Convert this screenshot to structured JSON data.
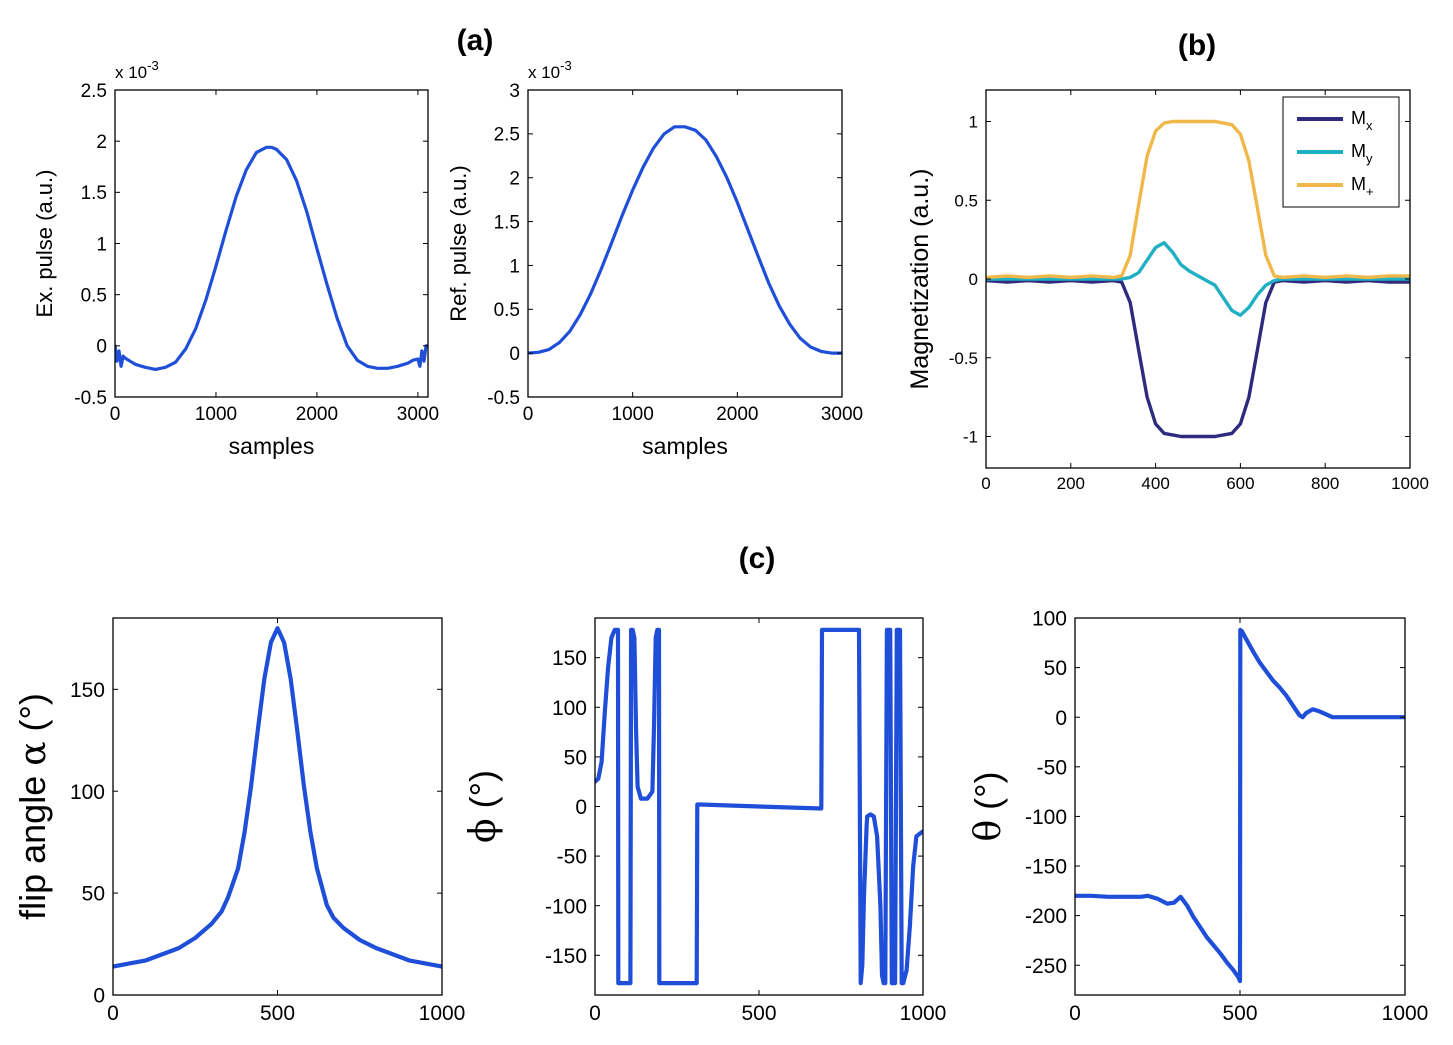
{
  "panel_labels": {
    "a": "(a)",
    "b": "(b)",
    "c": "(c)"
  },
  "colors": {
    "blue": "#1f4fd8",
    "mx": "#2e2a7e",
    "my": "#1fb0c4",
    "mplus": "#f0b84a"
  },
  "chart_data": [
    {
      "id": "ex_pulse",
      "type": "line",
      "ylabel": "Ex. pulse (a.u.)",
      "xlabel": "samples",
      "multiplier": "x 10",
      "multiplier_exp": "-3",
      "xlim": [
        0,
        3100
      ],
      "ylim": [
        -0.5,
        2.5
      ],
      "xticks": [
        0,
        1000,
        2000,
        3000
      ],
      "yticks": [
        -0.5,
        0,
        0.5,
        1,
        1.5,
        2,
        2.5
      ],
      "yticklabels": [
        "-0.5",
        "0",
        "0.5",
        "1",
        "1.5",
        "2",
        "2.5"
      ],
      "series": [
        {
          "name": "Ex. pulse",
          "color": "#1f4fd8",
          "x": [
            0,
            20,
            40,
            60,
            80,
            100,
            150,
            200,
            300,
            400,
            500,
            600,
            700,
            800,
            900,
            1000,
            1100,
            1200,
            1300,
            1400,
            1500,
            1550,
            1600,
            1700,
            1800,
            1900,
            2000,
            2100,
            2200,
            2300,
            2400,
            2500,
            2600,
            2700,
            2800,
            2900,
            2950,
            3000,
            3020,
            3040,
            3060,
            3080,
            3100
          ],
          "y": [
            0,
            -0.15,
            -0.05,
            -0.2,
            -0.1,
            -0.12,
            -0.15,
            -0.18,
            -0.21,
            -0.23,
            -0.21,
            -0.16,
            -0.03,
            0.17,
            0.45,
            0.78,
            1.13,
            1.46,
            1.72,
            1.89,
            1.94,
            1.94,
            1.92,
            1.82,
            1.61,
            1.31,
            0.95,
            0.6,
            0.27,
            0.0,
            -0.14,
            -0.2,
            -0.22,
            -0.22,
            -0.2,
            -0.17,
            -0.14,
            -0.13,
            -0.2,
            -0.05,
            -0.15,
            0,
            0
          ]
        }
      ]
    },
    {
      "id": "ref_pulse",
      "type": "line",
      "ylabel": "Ref. pulse (a.u.)",
      "xlabel": "samples",
      "multiplier": "x 10",
      "multiplier_exp": "-3",
      "xlim": [
        0,
        3000
      ],
      "ylim": [
        -0.5,
        3
      ],
      "xticks": [
        0,
        1000,
        2000,
        3000
      ],
      "yticks": [
        -0.5,
        0,
        0.5,
        1,
        1.5,
        2,
        2.5,
        3
      ],
      "yticklabels": [
        "-0.5",
        "0",
        "0.5",
        "1",
        "1.5",
        "2",
        "2.5",
        "3"
      ],
      "series": [
        {
          "name": "Ref. pulse",
          "color": "#1f4fd8",
          "x": [
            0,
            100,
            200,
            300,
            400,
            500,
            600,
            700,
            800,
            900,
            1000,
            1100,
            1200,
            1300,
            1400,
            1500,
            1600,
            1700,
            1800,
            1900,
            2000,
            2100,
            2200,
            2300,
            2400,
            2500,
            2600,
            2700,
            2800,
            2900,
            3000
          ],
          "y": [
            0.0,
            0.01,
            0.04,
            0.12,
            0.25,
            0.44,
            0.68,
            0.96,
            1.26,
            1.57,
            1.86,
            2.12,
            2.34,
            2.5,
            2.58,
            2.58,
            2.54,
            2.43,
            2.24,
            2.0,
            1.72,
            1.41,
            1.1,
            0.8,
            0.54,
            0.33,
            0.17,
            0.07,
            0.02,
            0.0,
            0.0
          ]
        }
      ]
    },
    {
      "id": "magnetization",
      "type": "line",
      "ylabel": "Magnetization (a.u.)",
      "xlabel": "",
      "xlim": [
        0,
        1000
      ],
      "ylim": [
        -1.2,
        1.2
      ],
      "xticks": [
        0,
        200,
        400,
        600,
        800,
        1000
      ],
      "yticks": [
        -1,
        -0.5,
        0,
        0.5,
        1
      ],
      "yticklabels": [
        "-1",
        "-0.5",
        "0",
        "0.5",
        "1"
      ],
      "legend_position": "top-right",
      "series": [
        {
          "name": "M",
          "sub": "x",
          "color": "#2e2a7e",
          "x": [
            0,
            50,
            100,
            150,
            200,
            250,
            300,
            320,
            340,
            360,
            380,
            400,
            420,
            440,
            460,
            480,
            500,
            520,
            540,
            560,
            580,
            600,
            620,
            640,
            660,
            680,
            700,
            750,
            800,
            850,
            900,
            950,
            1000
          ],
          "y": [
            -0.01,
            -0.02,
            -0.01,
            -0.02,
            -0.01,
            -0.02,
            -0.01,
            -0.02,
            -0.15,
            -0.45,
            -0.75,
            -0.92,
            -0.98,
            -0.99,
            -1.0,
            -1.0,
            -1.0,
            -1.0,
            -1.0,
            -0.99,
            -0.98,
            -0.92,
            -0.75,
            -0.45,
            -0.15,
            -0.02,
            -0.01,
            -0.02,
            -0.01,
            -0.02,
            -0.01,
            -0.02,
            -0.02
          ]
        },
        {
          "name": "M",
          "sub": "y",
          "color": "#1fb0c4",
          "x": [
            0,
            100,
            200,
            300,
            320,
            340,
            360,
            380,
            400,
            420,
            440,
            460,
            480,
            500,
            520,
            540,
            560,
            580,
            600,
            620,
            640,
            660,
            680,
            700,
            800,
            900,
            1000
          ],
          "y": [
            0.0,
            0.0,
            0.0,
            0.0,
            0.0,
            0.01,
            0.04,
            0.12,
            0.2,
            0.23,
            0.17,
            0.09,
            0.05,
            0.02,
            -0.01,
            -0.04,
            -0.12,
            -0.2,
            -0.23,
            -0.18,
            -0.1,
            -0.04,
            -0.01,
            0.0,
            0.0,
            0.0,
            0.0
          ]
        },
        {
          "name": "M",
          "sub": "+",
          "color": "#f0b84a",
          "x": [
            0,
            50,
            100,
            150,
            200,
            250,
            300,
            320,
            340,
            360,
            380,
            400,
            420,
            440,
            460,
            480,
            500,
            520,
            540,
            560,
            580,
            600,
            620,
            640,
            660,
            680,
            700,
            750,
            800,
            850,
            900,
            950,
            1000
          ],
          "y": [
            0.01,
            0.02,
            0.01,
            0.02,
            0.01,
            0.02,
            0.01,
            0.02,
            0.15,
            0.47,
            0.78,
            0.94,
            0.99,
            1.0,
            1.0,
            1.0,
            1.0,
            1.0,
            1.0,
            0.99,
            0.98,
            0.92,
            0.75,
            0.45,
            0.15,
            0.02,
            0.01,
            0.02,
            0.01,
            0.02,
            0.01,
            0.02,
            0.02
          ]
        }
      ]
    },
    {
      "id": "flip_angle",
      "type": "line",
      "ylabel_text": "flip angle ",
      "ylabel_symbol": "α",
      "ylabel_unit": " (°)",
      "xlim": [
        0,
        1000
      ],
      "ylim": [
        0,
        185
      ],
      "xticks": [
        0,
        500,
        1000
      ],
      "yticks": [
        0,
        50,
        100,
        150
      ],
      "yticklabels": [
        "0",
        "50",
        "100",
        "150"
      ],
      "series": [
        {
          "name": "flip angle",
          "color": "#1f4fd8",
          "x": [
            0,
            100,
            200,
            250,
            300,
            330,
            350,
            380,
            400,
            420,
            440,
            460,
            480,
            500,
            520,
            540,
            560,
            580,
            600,
            620,
            650,
            670,
            700,
            750,
            800,
            900,
            1000
          ],
          "y": [
            14,
            17,
            23,
            28,
            35,
            41,
            48,
            62,
            80,
            103,
            130,
            155,
            173,
            180,
            173,
            155,
            130,
            103,
            80,
            62,
            44,
            38,
            33,
            27,
            23,
            17,
            14
          ]
        }
      ]
    },
    {
      "id": "phi",
      "type": "line",
      "ylabel_symbol": "ϕ",
      "ylabel_unit": " (°)",
      "xlim": [
        0,
        1000
      ],
      "ylim": [
        -190,
        190
      ],
      "xticks": [
        0,
        500,
        1000
      ],
      "yticks": [
        -150,
        -100,
        -50,
        0,
        50,
        100,
        150
      ],
      "yticklabels": [
        "-150",
        "-100",
        "-50",
        "0",
        "50",
        "100",
        "150"
      ],
      "series": [
        {
          "name": "phi",
          "color": "#1f4fd8",
          "x": [
            0,
            10,
            20,
            30,
            40,
            50,
            60,
            70,
            71,
            90,
            108,
            110,
            115,
            120,
            125,
            130,
            140,
            160,
            175,
            180,
            185,
            190,
            195,
            196,
            200,
            220,
            250,
            280,
            310,
            312,
            320,
            500,
            690,
            692,
            700,
            800,
            805,
            810,
            815,
            820,
            828,
            830,
            840,
            850,
            860,
            870,
            875,
            880,
            885,
            890,
            900,
            905,
            915,
            920,
            930,
            935,
            940,
            950,
            960,
            970,
            980,
            1000
          ],
          "y": [
            25,
            28,
            45,
            95,
            140,
            170,
            178,
            178,
            -178,
            -178,
            -178,
            178,
            178,
            170,
            80,
            20,
            8,
            8,
            15,
            80,
            170,
            178,
            178,
            -178,
            -178,
            -178,
            -178,
            -178,
            -178,
            2,
            2,
            0,
            -2,
            178,
            178,
            178,
            178,
            -178,
            -160,
            -90,
            -20,
            -10,
            -8,
            -10,
            -30,
            -100,
            -170,
            -178,
            -178,
            178,
            178,
            -178,
            -178,
            178,
            178,
            -178,
            -178,
            -165,
            -120,
            -60,
            -30,
            -25
          ]
        }
      ]
    },
    {
      "id": "theta",
      "type": "line",
      "ylabel_symbol": "θ",
      "ylabel_unit": " (°)",
      "xlim": [
        0,
        1000
      ],
      "ylim": [
        -280,
        100
      ],
      "xticks": [
        0,
        500,
        1000
      ],
      "yticks": [
        -250,
        -200,
        -150,
        -100,
        -50,
        0,
        50,
        100
      ],
      "yticklabels": [
        "-250",
        "-200",
        "-150",
        "-100",
        "-50",
        "0",
        "50",
        "100"
      ],
      "series": [
        {
          "name": "theta",
          "color": "#1f4fd8",
          "x": [
            0,
            50,
            100,
            150,
            200,
            220,
            250,
            280,
            300,
            320,
            340,
            360,
            380,
            400,
            420,
            440,
            460,
            480,
            495,
            500,
            501,
            505,
            520,
            540,
            560,
            580,
            600,
            620,
            640,
            660,
            680,
            690,
            700,
            720,
            740,
            760,
            780,
            800,
            850,
            900,
            950,
            1000
          ],
          "y": [
            -180,
            -180,
            -181,
            -181,
            -181,
            -180,
            -183,
            -188,
            -187,
            -181,
            -190,
            -202,
            -212,
            -222,
            -230,
            -238,
            -247,
            -255,
            -262,
            -266,
            88,
            87,
            78,
            66,
            55,
            46,
            37,
            30,
            22,
            12,
            2,
            0,
            4,
            8,
            6,
            3,
            0,
            0,
            0,
            0,
            0,
            0
          ]
        }
      ]
    }
  ]
}
